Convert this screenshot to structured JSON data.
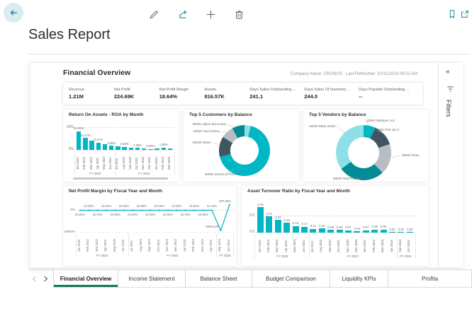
{
  "topbar": {
    "title": "Sales Report",
    "icons": [
      "back-arrow",
      "edit-pencil",
      "share",
      "add-plus",
      "delete-trash",
      "bookmark",
      "open-in-new"
    ]
  },
  "report": {
    "title": "Financial Overview",
    "meta": "Company Name: CRONUS - Last Refreshed: 10/31/2024 09:52 AM",
    "filters": {
      "label": "Filters"
    },
    "kpis": [
      {
        "label": "Revenue",
        "value": "1.21M"
      },
      {
        "label": "Net Profit",
        "value": "224.69K"
      },
      {
        "label": "Net Profit Margin",
        "value": "18.64%"
      },
      {
        "label": "Assets",
        "value": "816.57K"
      },
      {
        "label": "Days Sales Outstanding ...",
        "value": "241.1"
      },
      {
        "label": "Days Sales Of Inventory ...",
        "value": "244.0"
      },
      {
        "label": "Days Payable Outstanding ...",
        "value": "--"
      }
    ]
  },
  "tabs": {
    "items": [
      "Financial Overview",
      "Income Statement",
      "Balance Sheet",
      "Budget Comparison",
      "Liquidity KPIs",
      "Profita"
    ],
    "active": 0
  },
  "colors": {
    "teal": "#00b7c3",
    "dark_teal": "#038c96",
    "light_cyan": "#8ee0e7",
    "slate": "#3f5661",
    "gray": "#b7bdc3",
    "accent_green": "#0f7b5f",
    "icon_teal": "#0f8b96",
    "back_circle": "#d7edf2"
  },
  "chart_data": [
    {
      "id": "roa",
      "type": "bar",
      "title": "Return On Assets - ROA by Month",
      "categories": [
        "Jan 2022",
        "Feb 2022",
        "Mar 2022",
        "Apr 2022",
        "May 2022",
        "Jun 2022",
        "Jul 2022",
        "Aug 2022",
        "Sep 2022",
        "Oct 2022",
        "Nov 2022",
        "Dec 2022",
        "Jan 2023",
        "Feb 2023",
        "Mar 2023"
      ],
      "values": [
        16.53,
        10.37,
        8.1,
        6.47,
        4.8,
        3.68,
        3.0,
        2.55,
        2.15,
        1.8,
        1.25,
        0.84,
        0.95,
        1.88,
        1.45
      ],
      "data_labels": [
        "16.53%",
        "10.37%",
        null,
        "6.47%",
        null,
        "3.68%",
        null,
        "2.55%",
        null,
        "1.80%",
        null,
        "0.84%",
        null,
        "1.88%",
        null
      ],
      "y_ticks": [
        "20%",
        "0%"
      ],
      "ylim": [
        0,
        20
      ],
      "groups": [
        {
          "label": "FY 2022",
          "from": 0,
          "to": 5
        },
        {
          "label": "FY 2023",
          "from": 6,
          "to": 14
        }
      ]
    },
    {
      "id": "customers",
      "type": "pie",
      "title": "Top 5 Customers by Balance",
      "slices": [
        {
          "label": "10000 ...",
          "value": 4,
          "color": "light_cyan"
        },
        {
          "label": "30000 School of Fine Art",
          "value": 67,
          "color": "teal"
        },
        {
          "label": "50000 Relec...",
          "value": 13,
          "color": "slate"
        },
        {
          "label": "20000 Trey Resea...",
          "value": 8,
          "color": "gray"
        },
        {
          "label": "40000 Alpine Ski House",
          "value": 8,
          "color": "dark_teal"
        }
      ]
    },
    {
      "id": "vendors",
      "type": "pie",
      "title": "Top 5 Vendors by Balance",
      "slices": [
        {
          "label": "10000 Fabrikam, Inc.",
          "value": 7,
          "color": "teal"
        },
        {
          "label": "20000 First Up C...",
          "value": 13,
          "color": "slate"
        },
        {
          "label": "30000 Grap...",
          "value": 18,
          "color": "gray"
        },
        {
          "label": "50000 Nod Publishers",
          "value": 27,
          "color": "dark_teal"
        },
        {
          "label": "40000 Wide World ...",
          "value": 35,
          "color": "light_cyan"
        }
      ]
    },
    {
      "id": "npm",
      "type": "line",
      "title": "Net Profit Margin by Fiscal Year and Month",
      "x": [
        "Jan 2022",
        "Feb 2022",
        "Mar 2022",
        "Apr 2022",
        "May 2022",
        "Jun 2022",
        "Jul 2022",
        "Aug 2022",
        "Sep 2022",
        "Oct 2022",
        "Nov 2022",
        "Dec 2022",
        "Jan 2023",
        "Feb 2023",
        "Mar 2023",
        "Apr 2023",
        "Sep 2024",
        "Oct 2024"
      ],
      "values": [
        22.04,
        22.05,
        22.04,
        22.04,
        22.05,
        22.04,
        22.04,
        22.05,
        22.04,
        22.05,
        22.04,
        22.05,
        22.04,
        22.04,
        22.05,
        22.13,
        -4948.43,
        207.95
      ],
      "data_labels": [
        "22.04%",
        "22.05%",
        "22.04%",
        "22.04%",
        "22.05%",
        "22.04%",
        "22.04%",
        "22.05%",
        "22.04%",
        "22.05%",
        "22.04%",
        "22.05%",
        "22.04%",
        "22.04%",
        "22.05%",
        "22.13%",
        "-4948.43%",
        "207.95%"
      ],
      "y_ticks": [
        "0%",
        "-5000%"
      ],
      "ylim": [
        -5000,
        500
      ],
      "groups": [
        {
          "label": "FY 2022",
          "from": 0,
          "to": 5
        },
        {
          "label": "FY 2023",
          "from": 6,
          "to": 15
        },
        {
          "label": "FY 2025",
          "from": 16,
          "to": 17
        }
      ]
    },
    {
      "id": "turnover",
      "type": "bar",
      "title": "Asset Turnover Ratio by Fiscal Year and Month",
      "categories": [
        "Jan 2022",
        "Feb 2022",
        "Mar 2022",
        "Apr 2022",
        "May 2022",
        "Jun 2022",
        "Jul 2022",
        "Aug 2022",
        "Sep 2022",
        "Oct 2022",
        "Nov 2022",
        "Dec 2022",
        "Jan 2023",
        "Feb 2023",
        "Mar 2023",
        "Apr 2023",
        "Sep 2024",
        "Oct 2024"
      ],
      "values": [
        0.75,
        0.47,
        0.37,
        0.29,
        0.19,
        0.17,
        0.11,
        0.12,
        0.08,
        0.08,
        0.07,
        0.04,
        0.07,
        0.09,
        0.09,
        0.01,
        0.01,
        0.0
      ],
      "data_labels": [
        "0.75",
        "0.47",
        "0.37",
        "0.29",
        "0.19",
        "0.17",
        "0.11",
        "0.12",
        "0.08",
        "0.08",
        "0.07",
        "0.04",
        "0.07",
        "0.09",
        "0.09",
        "0.01",
        "0.01",
        "0.00"
      ],
      "y_ticks": [
        "0.5",
        "0.0"
      ],
      "ylim": [
        0,
        0.8
      ],
      "groups": [
        {
          "label": "FY 2022",
          "from": 0,
          "to": 5
        },
        {
          "label": "FY 2023",
          "from": 6,
          "to": 15
        },
        {
          "label": "FY 2025",
          "from": 16,
          "to": 17
        }
      ]
    }
  ]
}
